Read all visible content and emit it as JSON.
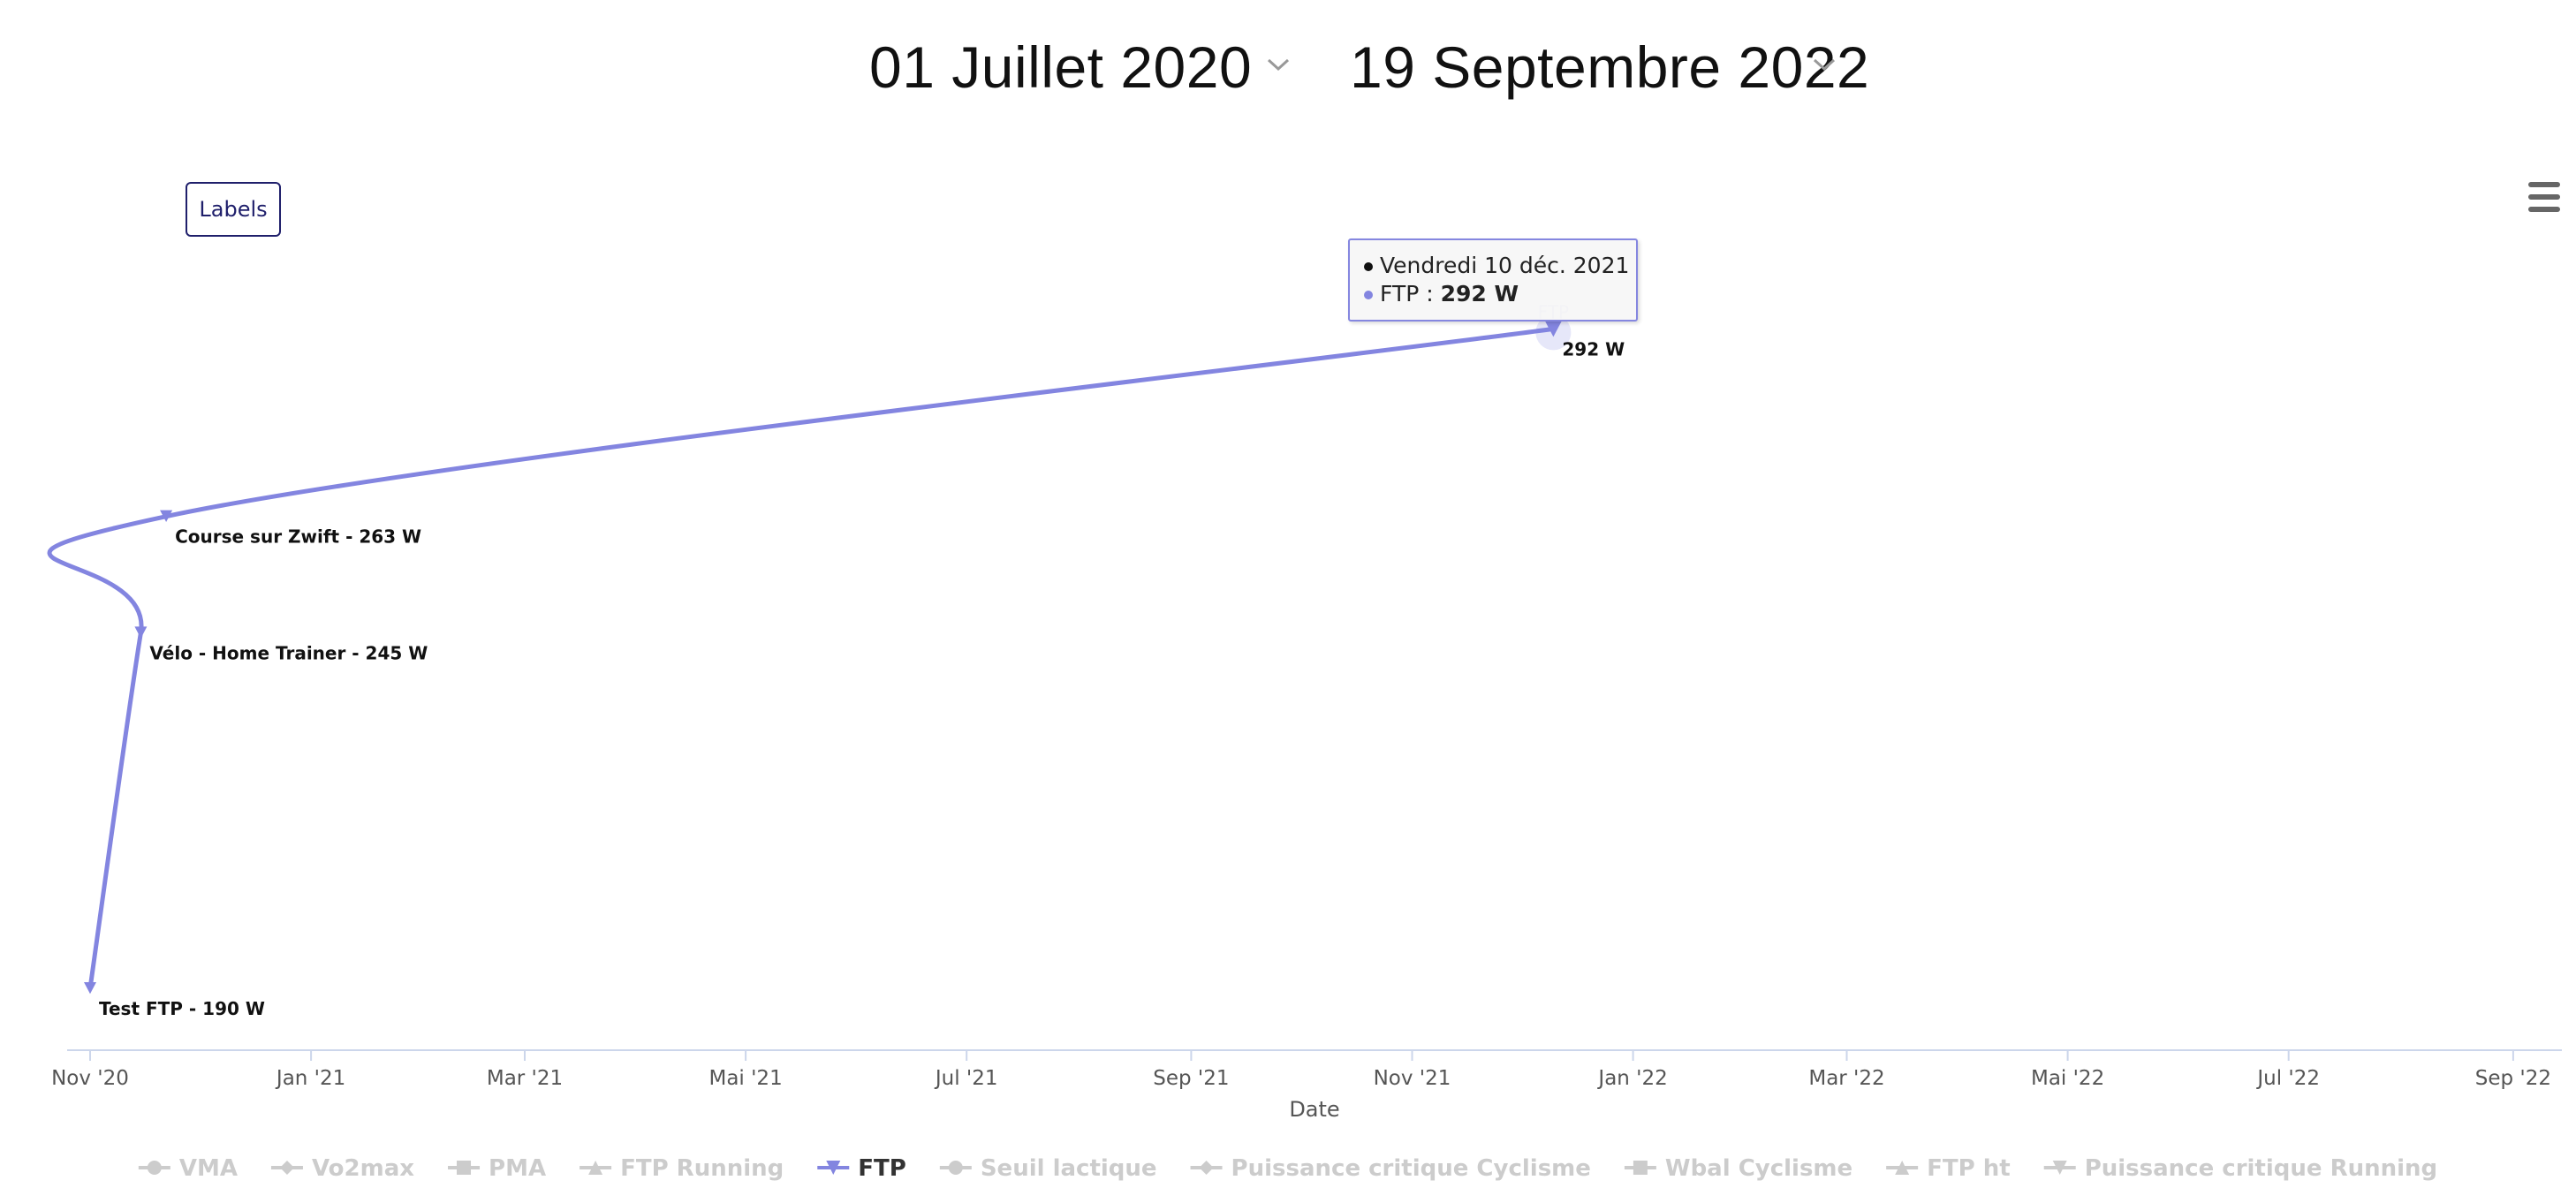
{
  "filters": {
    "start_date": "01 Juillet 2020",
    "end_date": "19 Septembre 2022"
  },
  "labels_button": "Labels",
  "menu_icon": "hamburger-menu-icon",
  "tooltip": {
    "date": "Vendredi 10 déc. 2021",
    "series": "FTP",
    "separator": " : ",
    "value": "292 W"
  },
  "colors": {
    "accent": "#8385e0",
    "legend_inactive": "#cccccc",
    "axis": "#ccd6eb"
  },
  "chart_data": {
    "type": "line",
    "xlabel": "Date",
    "ylabel": "",
    "x_ticks": [
      "Nov '20",
      "Jan '21",
      "Mar '21",
      "Mai '21",
      "Jul '21",
      "Sep '21",
      "Nov '21",
      "Jan '22",
      "Mar '22",
      "Mai '22",
      "Jul '22",
      "Sep '22"
    ],
    "series": [
      {
        "name": "FTP",
        "marker": "triangle-down",
        "points": [
          {
            "date": "2020-11-01",
            "value": 190,
            "label": "Test FTP - 190 W"
          },
          {
            "date": "2020-11-15",
            "value": 245,
            "label": "Vélo - Home Trainer - 245 W"
          },
          {
            "date": "2020-11-22",
            "value": 263,
            "label": "Course sur Zwift - 263 W"
          },
          {
            "date": "2021-12-10",
            "value": 292,
            "label": "292 W"
          }
        ]
      }
    ],
    "hover_point_marker_label": "FTP",
    "legend": [
      {
        "name": "VMA",
        "symbol": "circle",
        "active": false
      },
      {
        "name": "Vo2max",
        "symbol": "diamond",
        "active": false
      },
      {
        "name": "PMA",
        "symbol": "square",
        "active": false
      },
      {
        "name": "FTP Running",
        "symbol": "triangle",
        "active": false
      },
      {
        "name": "FTP",
        "symbol": "triangle-down",
        "active": true
      },
      {
        "name": "Seuil lactique",
        "symbol": "circle",
        "active": false
      },
      {
        "name": "Puissance critique Cyclisme",
        "symbol": "diamond",
        "active": false
      },
      {
        "name": "Wbal Cyclisme",
        "symbol": "square",
        "active": false
      },
      {
        "name": "FTP ht",
        "symbol": "triangle",
        "active": false
      },
      {
        "name": "Puissance critique Running",
        "symbol": "triangle-down",
        "active": false
      }
    ],
    "legend_placement": "bottom",
    "grid": false
  }
}
